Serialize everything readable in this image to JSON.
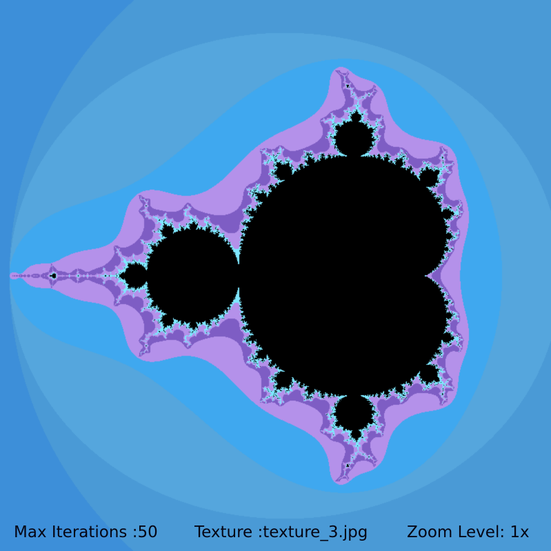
{
  "window": {
    "background_color": "#3d8fd9"
  },
  "fractal": {
    "type": "mandelbrot",
    "palette": {
      "interior": "#000000",
      "outer": "#3d8fd9",
      "ring_light": "#4a9ad6",
      "ring_lighter": "#55a6dd",
      "near": "#3fa8ef",
      "violet": "#b491ea",
      "purple": "#7e5dc4",
      "cyan": "#7ee7ff"
    }
  },
  "status": {
    "max_iterations": "Max Iterations :50",
    "texture": "Texture :texture_3.jpg",
    "zoom_level": "Zoom Level: 1x"
  }
}
